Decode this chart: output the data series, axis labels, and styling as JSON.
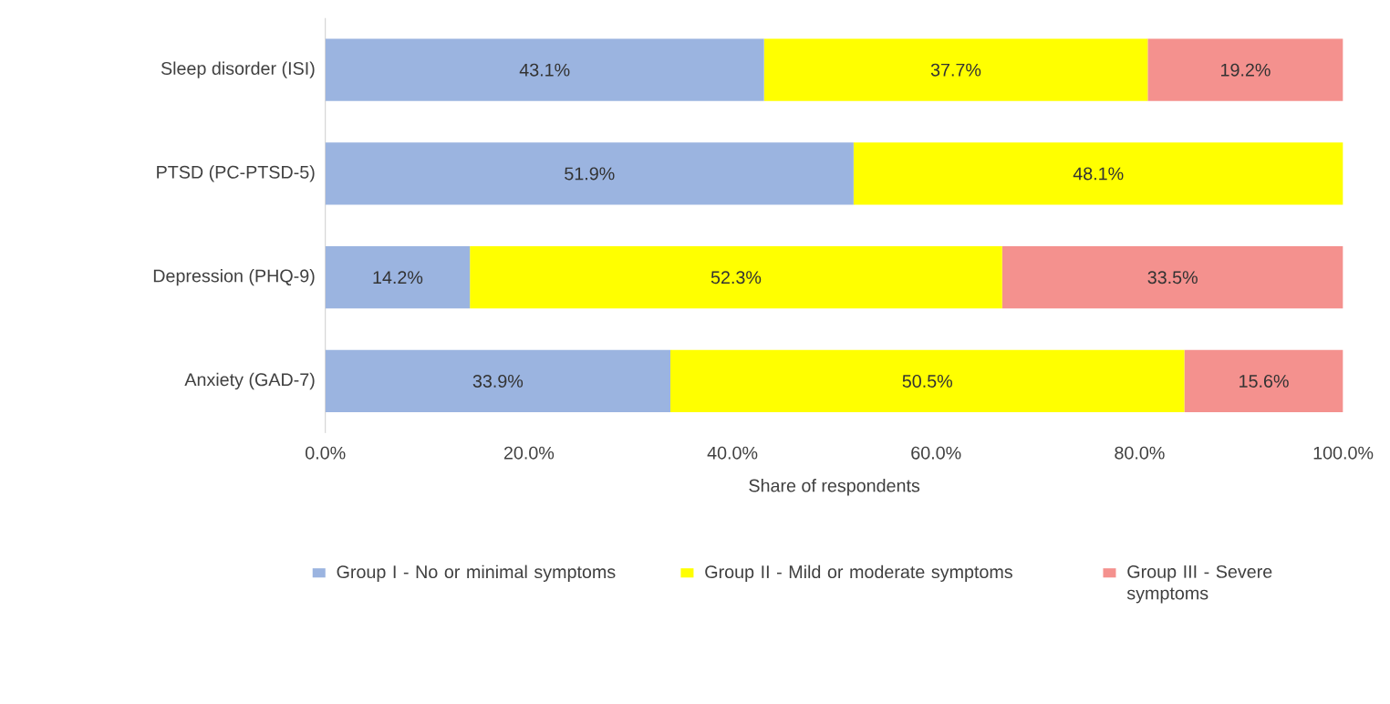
{
  "chart_data": {
    "type": "bar",
    "orientation": "horizontal",
    "stacked": true,
    "xlabel": "Share of respondents",
    "categories": [
      "Sleep disorder (ISI)",
      "PTSD (PC-PTSD-5)",
      "Depression (PHQ-9)",
      "Anxiety (GAD-7)"
    ],
    "series": [
      {
        "name": "Group I - No or minimal symptoms",
        "color": "#9bb4e0",
        "values": [
          43.1,
          51.9,
          14.2,
          33.9
        ],
        "value_labels": [
          "43.1%",
          "51.9%",
          "14.2%",
          "33.9%"
        ]
      },
      {
        "name": "Group II - Mild or moderate symptoms",
        "color": "#ffff00",
        "values": [
          37.7,
          48.1,
          52.3,
          50.5
        ],
        "value_labels": [
          "37.7%",
          "48.1%",
          "52.3%",
          "50.5%"
        ]
      },
      {
        "name": "Group III - Severe symptoms",
        "color": "#f4918e",
        "values": [
          19.2,
          null,
          33.5,
          15.6
        ],
        "value_labels": [
          "19.2%",
          null,
          "33.5%",
          "15.6%"
        ]
      }
    ],
    "xlim": [
      0,
      100
    ],
    "xticks": [
      {
        "value": 0,
        "label": "0.0%"
      },
      {
        "value": 20,
        "label": "20.0%"
      },
      {
        "value": 40,
        "label": "40.0%"
      },
      {
        "value": 60,
        "label": "60.0%"
      },
      {
        "value": 80,
        "label": "80.0%"
      },
      {
        "value": 100,
        "label": "100.0%"
      }
    ],
    "legend": "bottom",
    "grid": false
  }
}
